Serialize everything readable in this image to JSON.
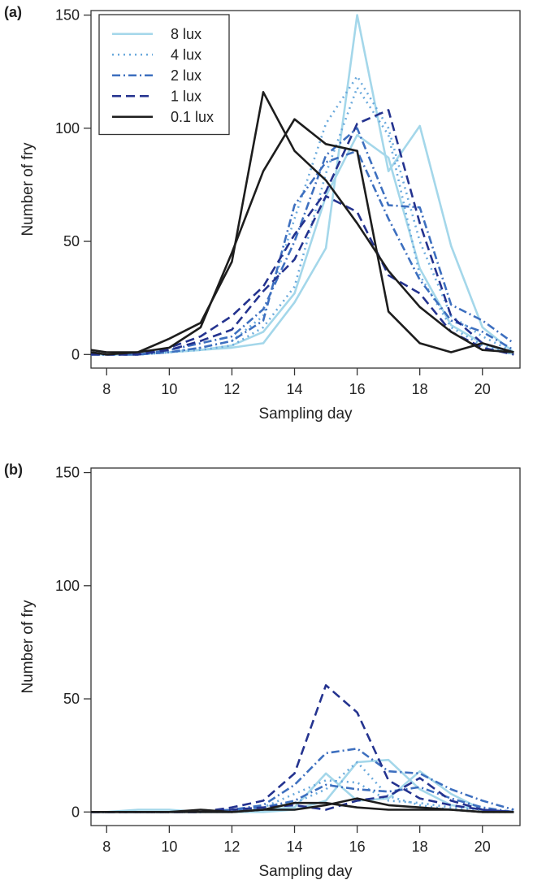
{
  "chart_data": [
    {
      "type": "line",
      "panel_label": "(a)",
      "xlabel": "Sampling day",
      "ylabel": "Number of fry",
      "xlim": [
        7.5,
        21.2
      ],
      "ylim": [
        -6,
        152
      ],
      "xticks": [
        8,
        10,
        12,
        14,
        16,
        18,
        20
      ],
      "yticks": [
        0,
        50,
        100,
        150
      ],
      "legend": {
        "position": "top-left",
        "entries": [
          {
            "label": "8 lux",
            "color": "#a4d7ea",
            "dash": "solid"
          },
          {
            "label": "4 lux",
            "color": "#6aa9dc",
            "dash": "dotted"
          },
          {
            "label": "2 lux",
            "color": "#3d6fbf",
            "dash": "dashdot"
          },
          {
            "label": "1 lux",
            "color": "#24338f",
            "dash": "dashed"
          },
          {
            "label": "0.1 lux",
            "color": "#1d1d1d",
            "dash": "solid"
          }
        ]
      },
      "series": [
        {
          "name": "8 lux",
          "color": "#a4d7ea",
          "dash": "solid",
          "x": [
            7.5,
            8,
            9,
            10,
            11,
            12,
            13,
            14,
            15,
            16,
            17,
            18,
            19,
            20,
            21
          ],
          "y": [
            0,
            0,
            0,
            1,
            2,
            3,
            5,
            23,
            47,
            150,
            81,
            101,
            48,
            12,
            1
          ]
        },
        {
          "name": "8 lux",
          "color": "#a4d7ea",
          "dash": "solid",
          "x": [
            7.5,
            8,
            9,
            10,
            11,
            12,
            13,
            14,
            15,
            16,
            17,
            18,
            19,
            20,
            21
          ],
          "y": [
            0,
            0,
            0,
            1,
            2,
            4,
            10,
            27,
            70,
            97,
            87,
            38,
            13,
            5,
            0
          ]
        },
        {
          "name": "4 lux",
          "color": "#6aa9dc",
          "dash": "dotted",
          "x": [
            7.5,
            8,
            9,
            10,
            11,
            12,
            13,
            14,
            15,
            16,
            17,
            18,
            19,
            20,
            21
          ],
          "y": [
            0,
            0,
            0,
            1,
            3,
            6,
            17,
            60,
            102,
            123,
            100,
            50,
            17,
            8,
            1
          ]
        },
        {
          "name": "4 lux",
          "color": "#6aa9dc",
          "dash": "dotted",
          "x": [
            7.5,
            8,
            9,
            10,
            11,
            12,
            13,
            14,
            15,
            16,
            17,
            18,
            19,
            20,
            21
          ],
          "y": [
            0,
            0,
            0,
            1,
            2,
            4,
            12,
            30,
            80,
            118,
            97,
            35,
            12,
            4,
            0
          ]
        },
        {
          "name": "2 lux",
          "color": "#3d6fbf",
          "dash": "dashdot",
          "x": [
            7.5,
            8,
            9,
            10,
            11,
            12,
            13,
            14,
            15,
            16,
            17,
            18,
            19,
            20,
            21
          ],
          "y": [
            0,
            0,
            0,
            2,
            5,
            8,
            20,
            50,
            88,
            100,
            66,
            65,
            22,
            15,
            5
          ]
        },
        {
          "name": "2 lux",
          "color": "#3d6fbf",
          "dash": "dashdot",
          "x": [
            7.5,
            8,
            9,
            10,
            11,
            12,
            13,
            14,
            15,
            16,
            17,
            18,
            19,
            20,
            21
          ],
          "y": [
            0,
            0,
            0,
            1,
            3,
            6,
            15,
            66,
            85,
            90,
            60,
            33,
            15,
            10,
            2
          ]
        },
        {
          "name": "1 lux",
          "color": "#24338f",
          "dash": "dashed",
          "x": [
            7.5,
            8,
            9,
            10,
            11,
            12,
            13,
            14,
            15,
            16,
            17,
            18,
            19,
            20,
            21
          ],
          "y": [
            1,
            0,
            0,
            3,
            8,
            17,
            30,
            53,
            72,
            102,
            108,
            58,
            17,
            5,
            1
          ]
        },
        {
          "name": "1 lux",
          "color": "#24338f",
          "dash": "dashed",
          "x": [
            7.5,
            8,
            9,
            10,
            11,
            12,
            13,
            14,
            15,
            16,
            17,
            18,
            19,
            20,
            21
          ],
          "y": [
            0,
            0,
            0,
            2,
            6,
            11,
            28,
            42,
            70,
            63,
            35,
            27,
            10,
            3,
            0
          ]
        },
        {
          "name": "0.1 lux",
          "color": "#1d1d1d",
          "dash": "solid",
          "x": [
            7.5,
            8,
            9,
            10,
            11,
            12,
            13,
            14,
            15,
            16,
            17,
            18,
            19,
            20,
            21
          ],
          "y": [
            2,
            1,
            1,
            7,
            14,
            41,
            116,
            90,
            77,
            58,
            37,
            21,
            10,
            2,
            1
          ]
        },
        {
          "name": "0.1 lux",
          "color": "#1d1d1d",
          "dash": "solid",
          "x": [
            7.5,
            8,
            9,
            10,
            11,
            12,
            13,
            14,
            15,
            16,
            17,
            18,
            19,
            20,
            21
          ],
          "y": [
            1,
            0,
            1,
            3,
            12,
            45,
            81,
            104,
            93,
            90,
            19,
            5,
            1,
            5,
            1
          ]
        }
      ]
    },
    {
      "type": "line",
      "panel_label": "(b)",
      "xlabel": "Sampling day",
      "ylabel": "Number of fry",
      "xlim": [
        7.5,
        21.2
      ],
      "ylim": [
        -6,
        152
      ],
      "xticks": [
        8,
        10,
        12,
        14,
        16,
        18,
        20
      ],
      "yticks": [
        0,
        50,
        100,
        150
      ],
      "series": [
        {
          "name": "8 lux",
          "color": "#a4d7ea",
          "dash": "solid",
          "x": [
            7.5,
            8,
            9,
            10,
            11,
            12,
            13,
            14,
            15,
            16,
            17,
            18,
            19,
            20,
            21
          ],
          "y": [
            0,
            0,
            1,
            1,
            0,
            0,
            1,
            2,
            17,
            5,
            6,
            18,
            8,
            1,
            0
          ]
        },
        {
          "name": "8 lux",
          "color": "#a4d7ea",
          "dash": "solid",
          "x": [
            7.5,
            8,
            9,
            10,
            11,
            12,
            13,
            14,
            15,
            16,
            17,
            18,
            19,
            20,
            21
          ],
          "y": [
            0,
            0,
            0,
            0,
            0,
            0,
            0,
            1,
            5,
            22,
            23,
            10,
            3,
            1,
            0
          ]
        },
        {
          "name": "4 lux",
          "color": "#6aa9dc",
          "dash": "dotted",
          "x": [
            7.5,
            8,
            9,
            10,
            11,
            12,
            13,
            14,
            15,
            16,
            17,
            18,
            19,
            20,
            21
          ],
          "y": [
            0,
            0,
            0,
            0,
            0,
            1,
            2,
            8,
            14,
            13,
            5,
            4,
            2,
            1,
            0
          ]
        },
        {
          "name": "4 lux",
          "color": "#6aa9dc",
          "dash": "dotted",
          "x": [
            7.5,
            8,
            9,
            10,
            11,
            12,
            13,
            14,
            15,
            16,
            17,
            18,
            19,
            20,
            21
          ],
          "y": [
            0,
            0,
            0,
            0,
            0,
            0,
            1,
            4,
            10,
            22,
            7,
            3,
            1,
            0,
            0
          ]
        },
        {
          "name": "2 lux",
          "color": "#3d6fbf",
          "dash": "dashdot",
          "x": [
            7.5,
            8,
            9,
            10,
            11,
            12,
            13,
            14,
            15,
            16,
            17,
            18,
            19,
            20,
            21
          ],
          "y": [
            0,
            0,
            0,
            0,
            0,
            1,
            3,
            12,
            26,
            28,
            18,
            17,
            10,
            5,
            1
          ]
        },
        {
          "name": "2 lux",
          "color": "#3d6fbf",
          "dash": "dashdot",
          "x": [
            7.5,
            8,
            9,
            10,
            11,
            12,
            13,
            14,
            15,
            16,
            17,
            18,
            19,
            20,
            21
          ],
          "y": [
            0,
            0,
            0,
            0,
            0,
            1,
            2,
            5,
            12,
            10,
            9,
            11,
            6,
            2,
            0
          ]
        },
        {
          "name": "1 lux",
          "color": "#24338f",
          "dash": "dashed",
          "x": [
            7.5,
            8,
            9,
            10,
            11,
            12,
            13,
            14,
            15,
            16,
            17,
            18,
            19,
            20,
            21
          ],
          "y": [
            0,
            0,
            0,
            0,
            0,
            2,
            5,
            17,
            56,
            44,
            14,
            6,
            3,
            1,
            0
          ]
        },
        {
          "name": "1 lux",
          "color": "#24338f",
          "dash": "dashed",
          "x": [
            7.5,
            8,
            9,
            10,
            11,
            12,
            13,
            14,
            15,
            16,
            17,
            18,
            19,
            20,
            21
          ],
          "y": [
            0,
            0,
            0,
            0,
            0,
            1,
            2,
            3,
            1,
            5,
            7,
            15,
            5,
            1,
            0
          ]
        },
        {
          "name": "0.1 lux",
          "color": "#1d1d1d",
          "dash": "solid",
          "x": [
            7.5,
            8,
            9,
            10,
            11,
            12,
            13,
            14,
            15,
            16,
            17,
            18,
            19,
            20,
            21
          ],
          "y": [
            0,
            0,
            0,
            0,
            1,
            0,
            1,
            1,
            3,
            6,
            3,
            2,
            1,
            0,
            0
          ]
        },
        {
          "name": "0.1 lux",
          "color": "#1d1d1d",
          "dash": "solid",
          "x": [
            7.5,
            8,
            9,
            10,
            11,
            12,
            13,
            14,
            15,
            16,
            17,
            18,
            19,
            20,
            21
          ],
          "y": [
            0,
            0,
            0,
            0,
            0,
            0,
            1,
            4,
            4,
            2,
            1,
            1,
            1,
            0,
            0
          ]
        }
      ]
    }
  ]
}
